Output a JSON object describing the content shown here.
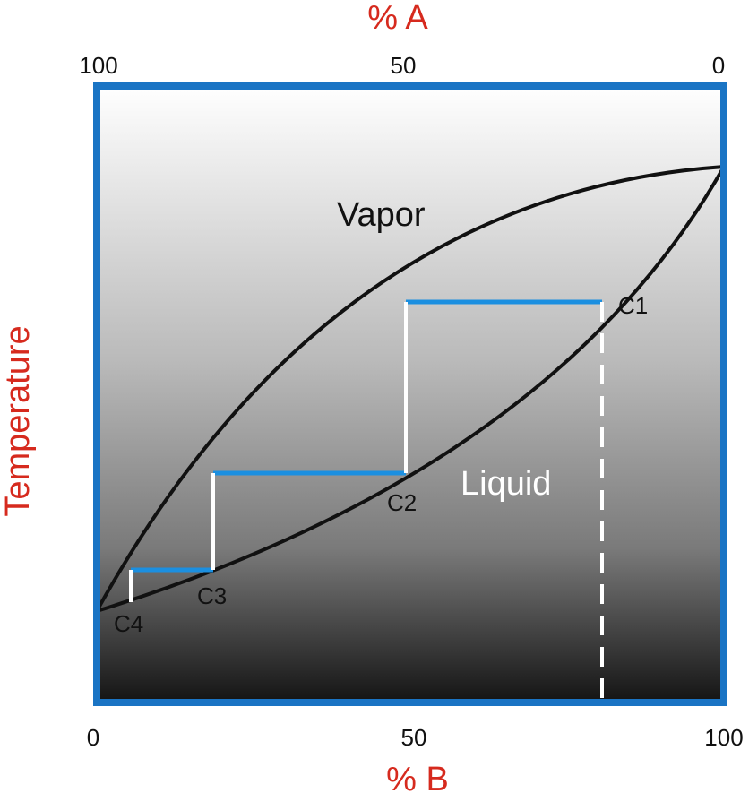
{
  "top_axis": {
    "title": "% A",
    "ticks": [
      "100",
      "50",
      "0"
    ]
  },
  "bottom_axis": {
    "title": "% B",
    "ticks": [
      "0",
      "50",
      "100"
    ]
  },
  "y_axis": {
    "title": "Temperature"
  },
  "regions": {
    "vapor": "Vapor",
    "liquid": "Liquid"
  },
  "points": {
    "c1": "C1",
    "c2": "C2",
    "c3": "C3",
    "c4": "C4"
  },
  "colors": {
    "frame": "#1a74c4",
    "tie_line": "#1b8fe0",
    "titles": "#d62a1e",
    "curves": "#111111",
    "steps": "#ffffff",
    "gradient_top": "#ffffff",
    "gradient_bottom": "#141414"
  }
}
